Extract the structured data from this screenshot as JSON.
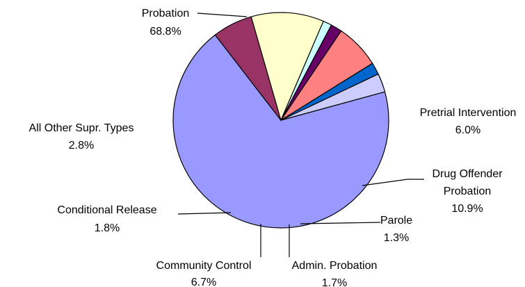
{
  "chart_data": {
    "type": "pie",
    "title": "",
    "slices": [
      {
        "name": "Probation",
        "value": 68.8,
        "label": "68.8%",
        "color": "#9999ff"
      },
      {
        "name": "Pretrial Intervention",
        "value": 6.0,
        "label": "6.0%",
        "color": "#993366"
      },
      {
        "name": "Drug Offender Probation",
        "value": 10.9,
        "label": "10.9%",
        "color": "#ffffcc"
      },
      {
        "name": "Parole",
        "value": 1.3,
        "label": "1.3%",
        "color": "#ccffff"
      },
      {
        "name": "Admin. Probation",
        "value": 1.7,
        "label": "1.7%",
        "color": "#660066"
      },
      {
        "name": "Community Control",
        "value": 6.7,
        "label": "6.7%",
        "color": "#ff8080"
      },
      {
        "name": "Conditional Release",
        "value": 1.8,
        "label": "1.8%",
        "color": "#0066cc"
      },
      {
        "name": "All Other Supr. Types",
        "value": 2.8,
        "label": "2.8%",
        "color": "#ccccff"
      }
    ]
  }
}
